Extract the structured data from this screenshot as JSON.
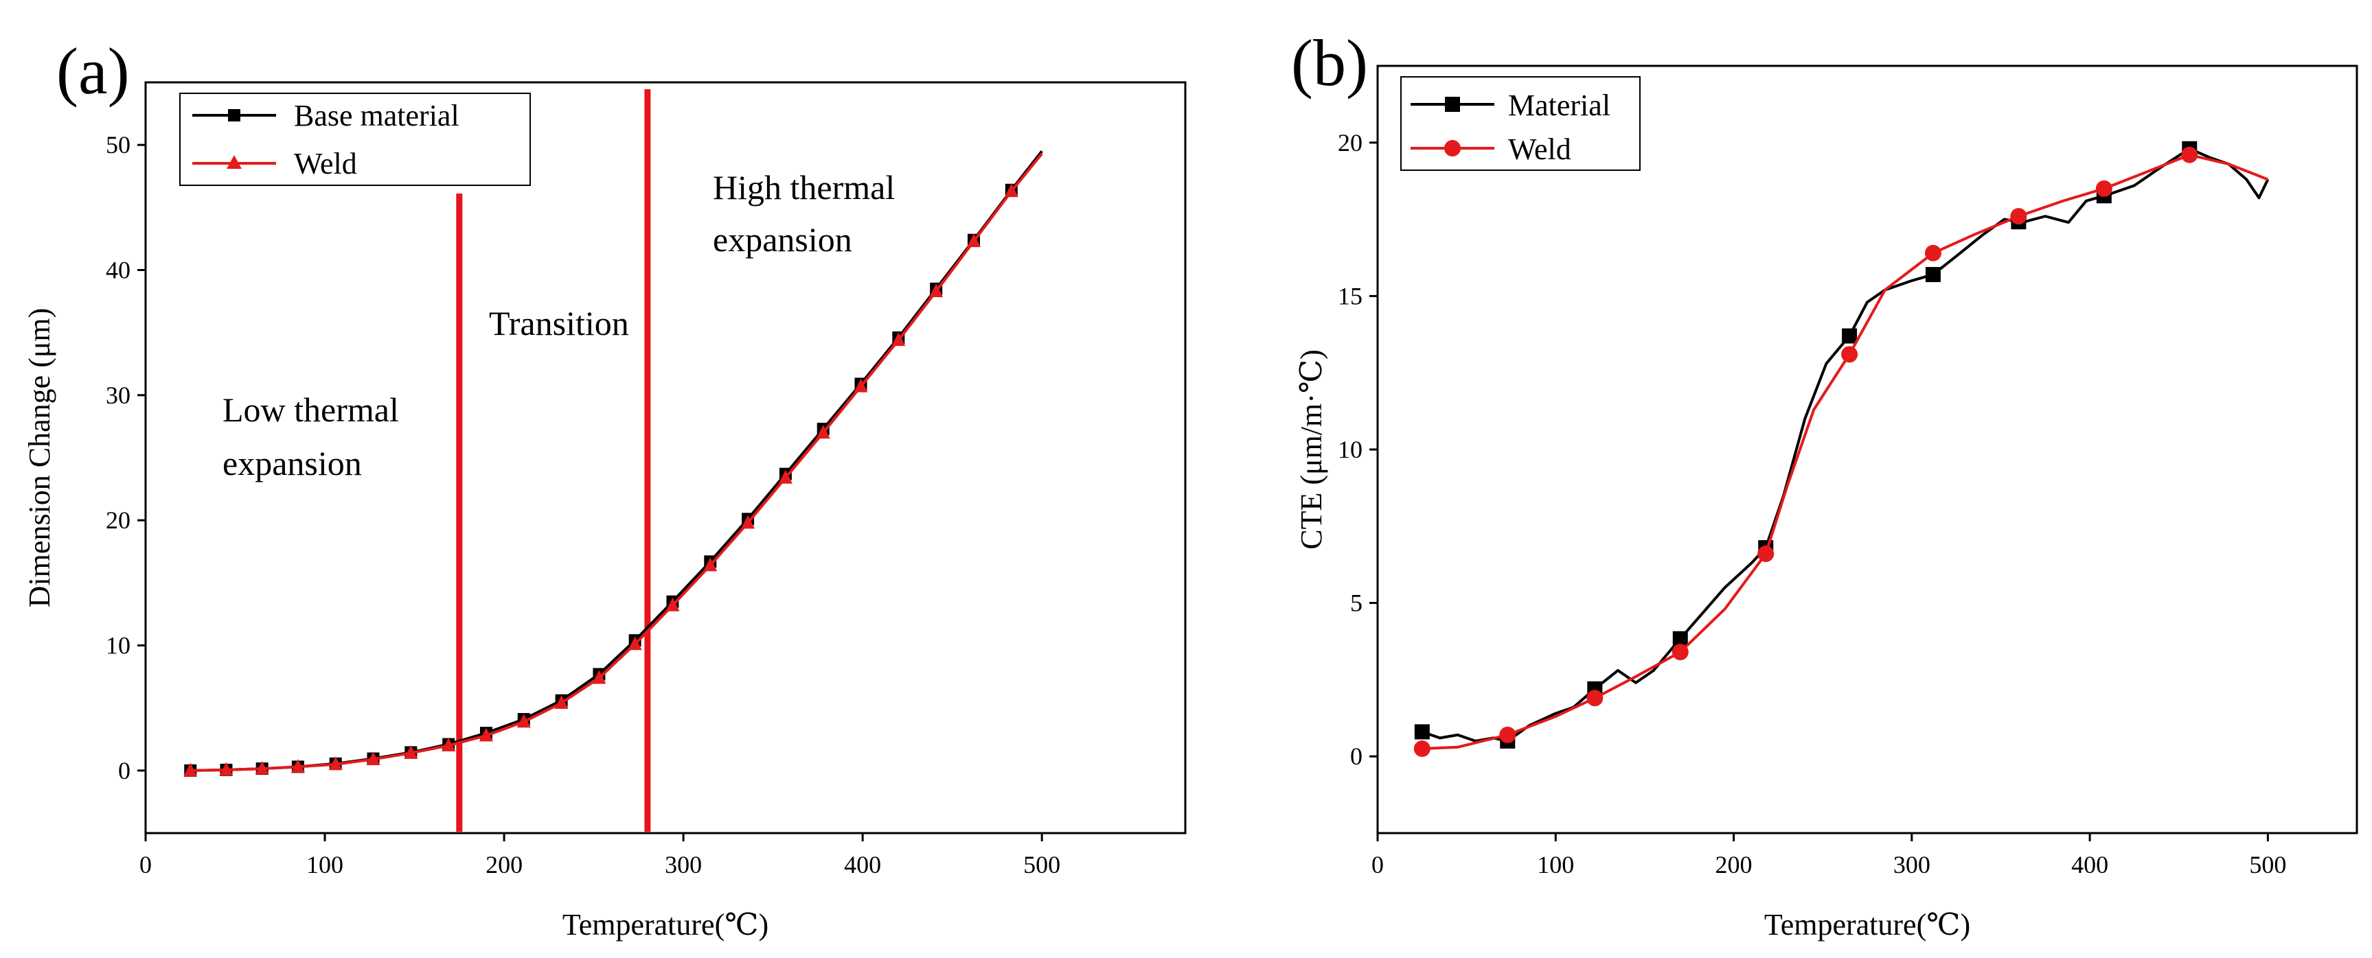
{
  "chart_data": [
    {
      "panel": "(a)",
      "type": "line",
      "title": "",
      "xlabel": "Temperature(℃)",
      "ylabel": "Dimension Change (μm)",
      "xlim": [
        0,
        580
      ],
      "ylim": [
        -5,
        55
      ],
      "xticks": [
        0,
        100,
        200,
        300,
        400,
        500
      ],
      "yticks": [
        0,
        10,
        20,
        30,
        40,
        50
      ],
      "x": [
        25,
        45,
        65,
        85,
        106,
        127,
        148,
        169,
        190,
        211,
        232,
        253,
        273,
        294,
        315,
        336,
        357,
        378,
        399,
        420,
        441,
        462,
        483,
        500
      ],
      "series": [
        {
          "name": "Base material",
          "color": "#000000",
          "marker": "square",
          "values": [
            0.0,
            0.05,
            0.15,
            0.3,
            0.55,
            0.95,
            1.45,
            2.1,
            3.0,
            4.1,
            5.6,
            7.7,
            10.4,
            13.5,
            16.7,
            20.1,
            23.7,
            27.3,
            30.9,
            34.6,
            38.5,
            42.4,
            46.4,
            49.5
          ]
        },
        {
          "name": "Weld",
          "color": "#e41a1c",
          "marker": "triangle",
          "values": [
            0.0,
            0.05,
            0.15,
            0.3,
            0.5,
            0.9,
            1.4,
            2.0,
            2.8,
            3.9,
            5.4,
            7.4,
            10.1,
            13.2,
            16.4,
            19.8,
            23.4,
            27.0,
            30.7,
            34.4,
            38.3,
            42.3,
            46.3,
            49.3
          ]
        }
      ],
      "vlines": [
        {
          "x": 175,
          "color": "#e8141b"
        },
        {
          "x": 280,
          "color": "#e8141b"
        }
      ],
      "annotations": [
        {
          "id": "low",
          "lines": [
            "Low thermal",
            "expansion"
          ]
        },
        {
          "id": "transition",
          "lines": [
            "Transition"
          ]
        },
        {
          "id": "high",
          "lines": [
            "High thermal",
            "expansion"
          ]
        }
      ],
      "legend_position": "top-left"
    },
    {
      "panel": "(b)",
      "type": "line",
      "title": "",
      "xlabel": "Temperature(℃)",
      "ylabel": "CTE (μm/m·℃)",
      "xlim": [
        0,
        550
      ],
      "ylim": [
        -2.5,
        22.5
      ],
      "xticks": [
        0,
        100,
        200,
        300,
        400,
        500
      ],
      "yticks": [
        0,
        5,
        10,
        15,
        20
      ],
      "series": [
        {
          "name": "Material",
          "color": "#000000",
          "marker": "square",
          "x": [
            25,
            35,
            45,
            55,
            65,
            73,
            85,
            100,
            110,
            122,
            135,
            145,
            155,
            168,
            180,
            195,
            210,
            218,
            228,
            240,
            252,
            265,
            275,
            285,
            300,
            312,
            325,
            340,
            352,
            362,
            375,
            388,
            398,
            410,
            425,
            440,
            456,
            468,
            478,
            488,
            495,
            500
          ],
          "values": [
            0.8,
            0.6,
            0.7,
            0.5,
            0.6,
            0.5,
            1.0,
            1.4,
            1.6,
            2.2,
            2.8,
            2.4,
            2.8,
            3.7,
            4.5,
            5.5,
            6.3,
            6.8,
            8.5,
            11.0,
            12.8,
            13.7,
            14.8,
            15.2,
            15.5,
            15.7,
            16.3,
            17.0,
            17.5,
            17.4,
            17.6,
            17.4,
            18.1,
            18.3,
            18.6,
            19.2,
            19.8,
            19.5,
            19.3,
            18.8,
            18.2,
            18.8
          ]
        },
        {
          "name": "Weld",
          "color": "#e41a1c",
          "marker": "circle",
          "x": [
            25,
            45,
            73,
            100,
            122,
            145,
            170,
            195,
            218,
            230,
            245,
            265,
            285,
            312,
            335,
            360,
            385,
            408,
            430,
            456,
            478,
            500
          ],
          "values": [
            0.25,
            0.3,
            0.7,
            1.3,
            1.9,
            2.6,
            3.4,
            4.8,
            6.6,
            8.8,
            11.3,
            13.1,
            15.2,
            16.4,
            17.0,
            17.6,
            18.1,
            18.5,
            19.0,
            19.6,
            19.3,
            18.8
          ]
        }
      ],
      "marker_x": {
        "Material": [
          25,
          73,
          122,
          170,
          218,
          265,
          312,
          360,
          408,
          456
        ],
        "Weld": [
          25,
          73,
          122,
          170,
          218,
          265,
          312,
          360,
          408,
          456
        ]
      },
      "legend_position": "top-left"
    }
  ]
}
